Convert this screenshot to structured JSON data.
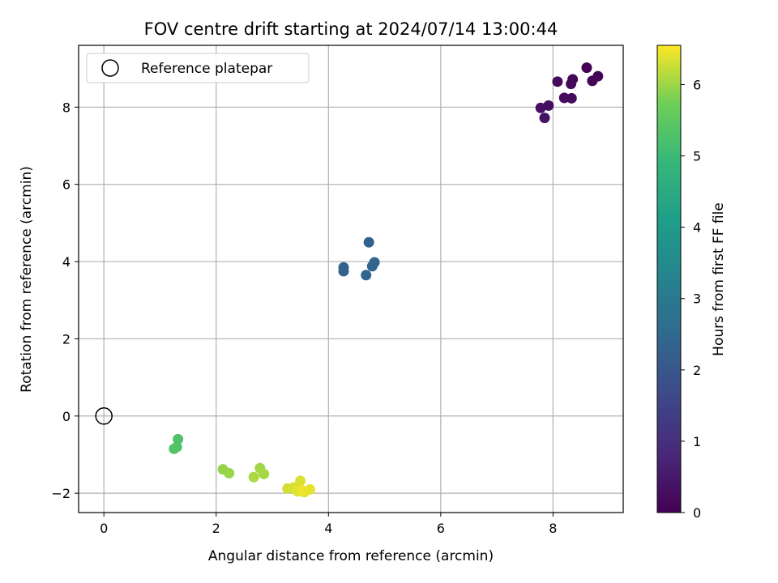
{
  "chart_data": {
    "type": "scatter",
    "title": "FOV centre drift starting at 2024/07/14 13:00:44",
    "xlabel": "Angular distance from reference (arcmin)",
    "ylabel": "Rotation from reference (arcmin)",
    "xlim": [
      -0.45,
      9.25
    ],
    "ylim": [
      -2.5,
      9.6
    ],
    "xticks": [
      0,
      2,
      4,
      6,
      8
    ],
    "yticks": [
      -2,
      0,
      2,
      4,
      6,
      8
    ],
    "grid": true,
    "legend": {
      "position": "top-left",
      "entries": [
        "Reference platepar"
      ]
    },
    "reference_point": {
      "x": 0,
      "y": 0,
      "label": "Reference platepar"
    },
    "colorbar": {
      "label": "Hours from first FF file",
      "colormap": "viridis",
      "range": [
        0,
        6.55
      ],
      "ticks": [
        0,
        1,
        2,
        3,
        4,
        5,
        6
      ]
    },
    "points": [
      {
        "x": 8.6,
        "y": 9.02,
        "c": 0.05
      },
      {
        "x": 8.8,
        "y": 8.8,
        "c": 0.08
      },
      {
        "x": 8.7,
        "y": 8.68,
        "c": 0.1
      },
      {
        "x": 8.35,
        "y": 8.72,
        "c": 0.12
      },
      {
        "x": 8.32,
        "y": 8.6,
        "c": 0.15
      },
      {
        "x": 8.08,
        "y": 8.66,
        "c": 0.18
      },
      {
        "x": 8.2,
        "y": 8.24,
        "c": 0.2
      },
      {
        "x": 8.33,
        "y": 8.23,
        "c": 0.22
      },
      {
        "x": 7.92,
        "y": 8.04,
        "c": 0.3
      },
      {
        "x": 7.78,
        "y": 7.98,
        "c": 0.32
      },
      {
        "x": 7.85,
        "y": 7.72,
        "c": 0.35
      },
      {
        "x": 4.72,
        "y": 4.5,
        "c": 2.25
      },
      {
        "x": 4.27,
        "y": 3.85,
        "c": 2.3
      },
      {
        "x": 4.27,
        "y": 3.75,
        "c": 2.32
      },
      {
        "x": 4.82,
        "y": 3.98,
        "c": 2.35
      },
      {
        "x": 4.78,
        "y": 3.88,
        "c": 2.38
      },
      {
        "x": 4.67,
        "y": 3.65,
        "c": 2.4
      },
      {
        "x": 1.32,
        "y": -0.6,
        "c": 5.3
      },
      {
        "x": 1.3,
        "y": -0.8,
        "c": 5.32
      },
      {
        "x": 1.25,
        "y": -0.85,
        "c": 5.35
      },
      {
        "x": 2.12,
        "y": -1.38,
        "c": 5.95
      },
      {
        "x": 2.23,
        "y": -1.48,
        "c": 5.97
      },
      {
        "x": 2.78,
        "y": -1.35,
        "c": 6.02
      },
      {
        "x": 2.85,
        "y": -1.5,
        "c": 6.05
      },
      {
        "x": 2.67,
        "y": -1.58,
        "c": 6.08
      },
      {
        "x": 3.27,
        "y": -1.88,
        "c": 6.3
      },
      {
        "x": 3.38,
        "y": -1.85,
        "c": 6.32
      },
      {
        "x": 3.5,
        "y": -1.68,
        "c": 6.35
      },
      {
        "x": 3.45,
        "y": -1.95,
        "c": 6.38
      },
      {
        "x": 3.57,
        "y": -1.97,
        "c": 6.4
      },
      {
        "x": 3.67,
        "y": -1.9,
        "c": 6.42
      },
      {
        "x": 3.52,
        "y": -1.92,
        "c": 6.45
      }
    ]
  }
}
